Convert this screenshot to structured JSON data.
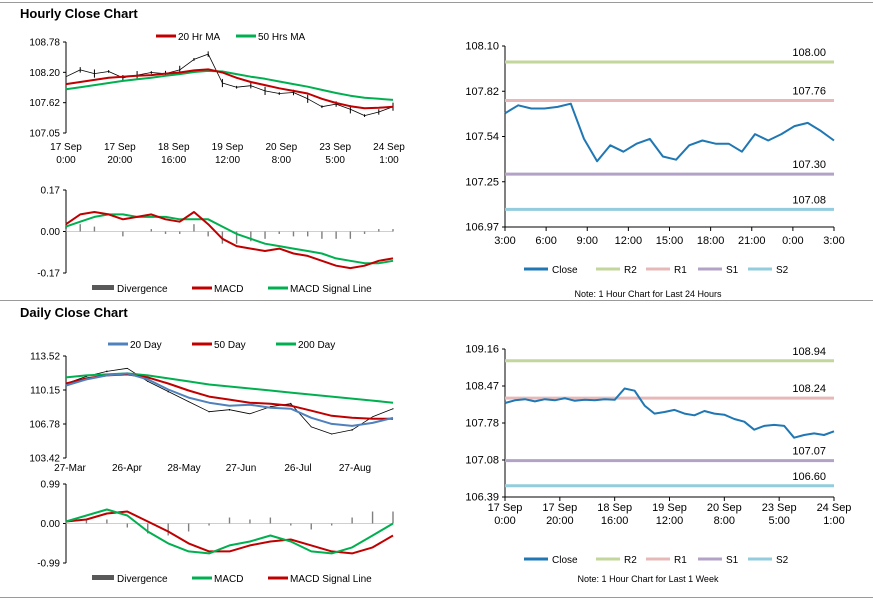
{
  "sections": {
    "hourly_title": "Hourly Close Chart",
    "daily_title": "Daily Close Chart"
  },
  "colors": {
    "red": "#c00000",
    "green": "#00b050",
    "blue": "#4f81bd",
    "close_blue": "#1f77b4",
    "r2": "#c3d69b",
    "r1": "#e6b9b8",
    "s1": "#b3a2c7",
    "s2": "#93cddd",
    "bars": "#7f7f7f",
    "price": "#000000"
  },
  "chart_data": [
    {
      "id": "hourly_price",
      "type": "line",
      "legend": [
        "20 Hr MA",
        "50 Hrs MA"
      ],
      "yticks": [
        "108.78",
        "108.20",
        "107.62",
        "107.05"
      ],
      "ylim": [
        107.05,
        108.78
      ],
      "xticks": [
        [
          "17 Sep",
          "0:00"
        ],
        [
          "17 Sep",
          "20:00"
        ],
        [
          "18 Sep",
          "16:00"
        ],
        [
          "19 Sep",
          "12:00"
        ],
        [
          "20 Sep",
          "8:00"
        ],
        [
          "23 Sep",
          "5:00"
        ],
        [
          "24 Sep",
          "1:00"
        ]
      ],
      "series": [
        {
          "name": "20 Hr MA",
          "color": "red",
          "values": [
            107.98,
            108.02,
            108.06,
            108.1,
            108.12,
            108.14,
            108.15,
            108.18,
            108.2,
            108.24,
            108.26,
            108.2,
            108.1,
            108.02,
            107.96,
            107.9,
            107.85,
            107.8,
            107.7,
            107.62,
            107.56,
            107.52,
            107.53,
            107.55
          ]
        },
        {
          "name": "50 Hrs MA",
          "color": "green",
          "values": [
            107.88,
            107.92,
            107.96,
            108.0,
            108.04,
            108.07,
            108.1,
            108.14,
            108.17,
            108.21,
            108.23,
            108.22,
            108.17,
            108.12,
            108.08,
            108.03,
            107.98,
            107.93,
            107.87,
            107.81,
            107.76,
            107.72,
            107.7,
            107.68
          ]
        },
        {
          "name": "Price",
          "color": "price",
          "values": [
            108.12,
            108.25,
            108.18,
            108.22,
            108.1,
            108.15,
            108.2,
            108.18,
            108.25,
            108.45,
            108.55,
            108.0,
            107.92,
            107.95,
            107.85,
            107.8,
            107.82,
            107.7,
            107.55,
            107.6,
            107.5,
            107.38,
            107.45,
            107.55
          ]
        }
      ]
    },
    {
      "id": "hourly_macd",
      "type": "line",
      "legend": [
        "Divergence",
        "MACD",
        "MACD Signal Line"
      ],
      "yticks": [
        "0.17",
        "0.00",
        "-0.17"
      ],
      "ylim": [
        -0.17,
        0.17
      ],
      "series": [
        {
          "name": "MACD",
          "color": "red",
          "values": [
            0.03,
            0.07,
            0.08,
            0.07,
            0.05,
            0.06,
            0.07,
            0.05,
            0.04,
            0.08,
            0.03,
            -0.03,
            -0.06,
            -0.07,
            -0.08,
            -0.07,
            -0.09,
            -0.1,
            -0.12,
            -0.14,
            -0.15,
            -0.14,
            -0.12,
            -0.11
          ]
        },
        {
          "name": "MACD Signal Line",
          "color": "green",
          "values": [
            0.02,
            0.04,
            0.06,
            0.07,
            0.07,
            0.06,
            0.06,
            0.06,
            0.05,
            0.05,
            0.05,
            0.02,
            -0.01,
            -0.03,
            -0.05,
            -0.06,
            -0.07,
            -0.08,
            -0.09,
            -0.11,
            -0.12,
            -0.13,
            -0.13,
            -0.12
          ]
        },
        {
          "name": "Divergence",
          "color": "bars",
          "values": [
            0.01,
            0.03,
            0.02,
            0.0,
            -0.02,
            0.0,
            0.01,
            -0.01,
            -0.01,
            0.03,
            -0.02,
            -0.05,
            -0.05,
            -0.04,
            -0.03,
            -0.01,
            -0.02,
            -0.02,
            -0.03,
            -0.03,
            -0.03,
            -0.01,
            0.01,
            0.01
          ]
        }
      ]
    },
    {
      "id": "hourly_pivot",
      "type": "line",
      "legend": [
        "Close",
        "R2",
        "R1",
        "S1",
        "S2"
      ],
      "note": "Note: 1 Hour Chart for Last 24 Hours",
      "yticks": [
        "108.10",
        "107.82",
        "107.54",
        "107.25",
        "106.97"
      ],
      "ylim": [
        106.97,
        108.1
      ],
      "xticks": [
        "3:00",
        "6:00",
        "9:00",
        "12:00",
        "15:00",
        "18:00",
        "21:00",
        "0:00",
        "3:00"
      ],
      "levels": [
        {
          "name": "R2",
          "value": 108.0,
          "label": "108.00"
        },
        {
          "name": "R1",
          "value": 107.76,
          "label": "107.76"
        },
        {
          "name": "S1",
          "value": 107.3,
          "label": "107.30"
        },
        {
          "name": "S2",
          "value": 107.08,
          "label": "107.08"
        }
      ],
      "series": [
        {
          "name": "Close",
          "color": "close_blue",
          "values": [
            107.68,
            107.73,
            107.71,
            107.71,
            107.72,
            107.74,
            107.52,
            107.38,
            107.48,
            107.44,
            107.49,
            107.52,
            107.41,
            107.39,
            107.48,
            107.51,
            107.49,
            107.49,
            107.44,
            107.55,
            107.51,
            107.55,
            107.6,
            107.62,
            107.57,
            107.51
          ]
        }
      ]
    },
    {
      "id": "daily_price",
      "type": "line",
      "legend": [
        "20 Day",
        "50 Day",
        "200 Day"
      ],
      "yticks": [
        "113.52",
        "110.15",
        "106.78",
        "103.42"
      ],
      "ylim": [
        103.42,
        113.52
      ],
      "xticks": [
        "27-Mar",
        "26-Apr",
        "28-May",
        "27-Jun",
        "26-Jul",
        "27-Aug"
      ],
      "series": [
        {
          "name": "20 Day",
          "color": "blue",
          "values": [
            110.6,
            111.2,
            111.6,
            111.8,
            111.2,
            110.2,
            109.4,
            108.9,
            108.6,
            108.7,
            108.4,
            108.3,
            107.4,
            106.8,
            106.6,
            106.9,
            107.4
          ]
        },
        {
          "name": "50 Day",
          "color": "red",
          "values": [
            110.8,
            111.3,
            111.6,
            111.7,
            111.4,
            110.8,
            110.1,
            109.5,
            109.2,
            108.9,
            108.8,
            108.6,
            108.1,
            107.6,
            107.4,
            107.3,
            107.3
          ]
        },
        {
          "name": "200 Day",
          "color": "green",
          "values": [
            111.4,
            111.6,
            111.7,
            111.8,
            111.6,
            111.3,
            111.0,
            110.7,
            110.5,
            110.3,
            110.1,
            109.9,
            109.7,
            109.5,
            109.3,
            109.1,
            108.9
          ]
        },
        {
          "name": "Price",
          "color": "price",
          "values": [
            110.8,
            111.5,
            112.0,
            112.3,
            111.0,
            110.0,
            109.0,
            108.0,
            108.2,
            107.8,
            108.5,
            108.8,
            106.5,
            105.8,
            106.2,
            107.5,
            108.3
          ]
        }
      ]
    },
    {
      "id": "daily_macd",
      "type": "line",
      "legend": [
        "Divergence",
        "MACD",
        "MACD Signal Line"
      ],
      "yticks": [
        "0.99",
        "0.00",
        "-0.99"
      ],
      "ylim": [
        -0.99,
        0.99
      ],
      "series": [
        {
          "name": "MACD",
          "color": "green",
          "values": [
            0.05,
            0.2,
            0.35,
            0.2,
            -0.2,
            -0.5,
            -0.7,
            -0.75,
            -0.55,
            -0.45,
            -0.3,
            -0.45,
            -0.7,
            -0.75,
            -0.6,
            -0.3,
            0.0
          ]
        },
        {
          "name": "MACD Signal Line",
          "color": "red",
          "values": [
            0.05,
            0.1,
            0.25,
            0.3,
            0.05,
            -0.2,
            -0.5,
            -0.7,
            -0.7,
            -0.55,
            -0.45,
            -0.4,
            -0.55,
            -0.7,
            -0.75,
            -0.6,
            -0.3
          ]
        },
        {
          "name": "Divergence",
          "color": "bars",
          "values": [
            0.05,
            0.1,
            0.1,
            -0.1,
            -0.25,
            -0.3,
            -0.2,
            -0.05,
            0.15,
            0.1,
            0.15,
            -0.05,
            -0.15,
            -0.05,
            0.15,
            0.3,
            0.3
          ]
        }
      ]
    },
    {
      "id": "daily_pivot",
      "type": "line",
      "legend": [
        "Close",
        "R2",
        "R1",
        "S1",
        "S2"
      ],
      "note": "Note: 1 Hour Chart for Last 1 Week",
      "yticks": [
        "109.16",
        "108.47",
        "107.78",
        "107.08",
        "106.39"
      ],
      "ylim": [
        106.39,
        109.16
      ],
      "xticks": [
        [
          "17 Sep",
          "0:00"
        ],
        [
          "17 Sep",
          "20:00"
        ],
        [
          "18 Sep",
          "16:00"
        ],
        [
          "19 Sep",
          "12:00"
        ],
        [
          "20 Sep",
          "8:00"
        ],
        [
          "23 Sep",
          "5:00"
        ],
        [
          "24 Sep",
          "1:00"
        ]
      ],
      "levels": [
        {
          "name": "R2",
          "value": 108.94,
          "label": "108.94"
        },
        {
          "name": "R1",
          "value": 108.24,
          "label": "108.24"
        },
        {
          "name": "S1",
          "value": 107.07,
          "label": "107.07"
        },
        {
          "name": "S2",
          "value": 106.6,
          "label": "106.60"
        }
      ],
      "series": [
        {
          "name": "Close",
          "color": "close_blue",
          "values": [
            108.15,
            108.2,
            108.22,
            108.18,
            108.22,
            108.2,
            108.24,
            108.19,
            108.21,
            108.2,
            108.22,
            108.21,
            108.42,
            108.38,
            108.1,
            107.95,
            107.98,
            108.02,
            107.95,
            107.92,
            108.0,
            107.95,
            107.93,
            107.85,
            107.8,
            107.65,
            107.72,
            107.74,
            107.72,
            107.5,
            107.55,
            107.58,
            107.55,
            107.62
          ]
        }
      ]
    }
  ]
}
